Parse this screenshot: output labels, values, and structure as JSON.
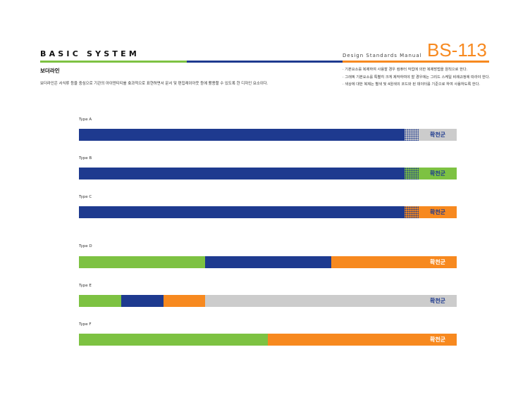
{
  "header": {
    "title": "BASIC SYSTEM",
    "manual_label": "Design Standards Manual",
    "code": "BS-113"
  },
  "section": {
    "title": "보더라인",
    "description": "보더라인은 서식류 등을 중심으로 기관의 아이덴티티를 효과적으로 표현하면서 문서 및 편집레이아웃 등에 활용할 수 있도록 한 디자인 요소이다."
  },
  "notes": [
    "· 기본요소를 복제하여 사용할 경우 컴퓨터 작업에 의한 복제방법을 원칙으로 한다.",
    "· 그래픽 기본요소를 특별히 크게 제작하여야 할 경우에는 그리드 스케일 비례규정에 따라야 한다.",
    "· 색상에 대한 복제는 별색 및 4원색의 코드와 된 데이터를 기준으로 하여 사용하도록 한다."
  ],
  "colors": {
    "navy": "#1e3a8f",
    "green": "#7dc242",
    "orange": "#f7891f",
    "gray": "#cccccc",
    "white": "#ffffff"
  },
  "brand_text": "확천군",
  "types": [
    {
      "label": "Type A",
      "text_color": "#1e3a8f"
    },
    {
      "label": "Type B",
      "text_color": "#1e3a8f"
    },
    {
      "label": "Type C",
      "text_color": "#1e3a8f"
    },
    {
      "label": "Type D",
      "text_color": "#ffffff"
    },
    {
      "label": "Type E",
      "text_color": "#1e3a8f"
    },
    {
      "label": "Type F",
      "text_color": "#ffffff"
    }
  ]
}
